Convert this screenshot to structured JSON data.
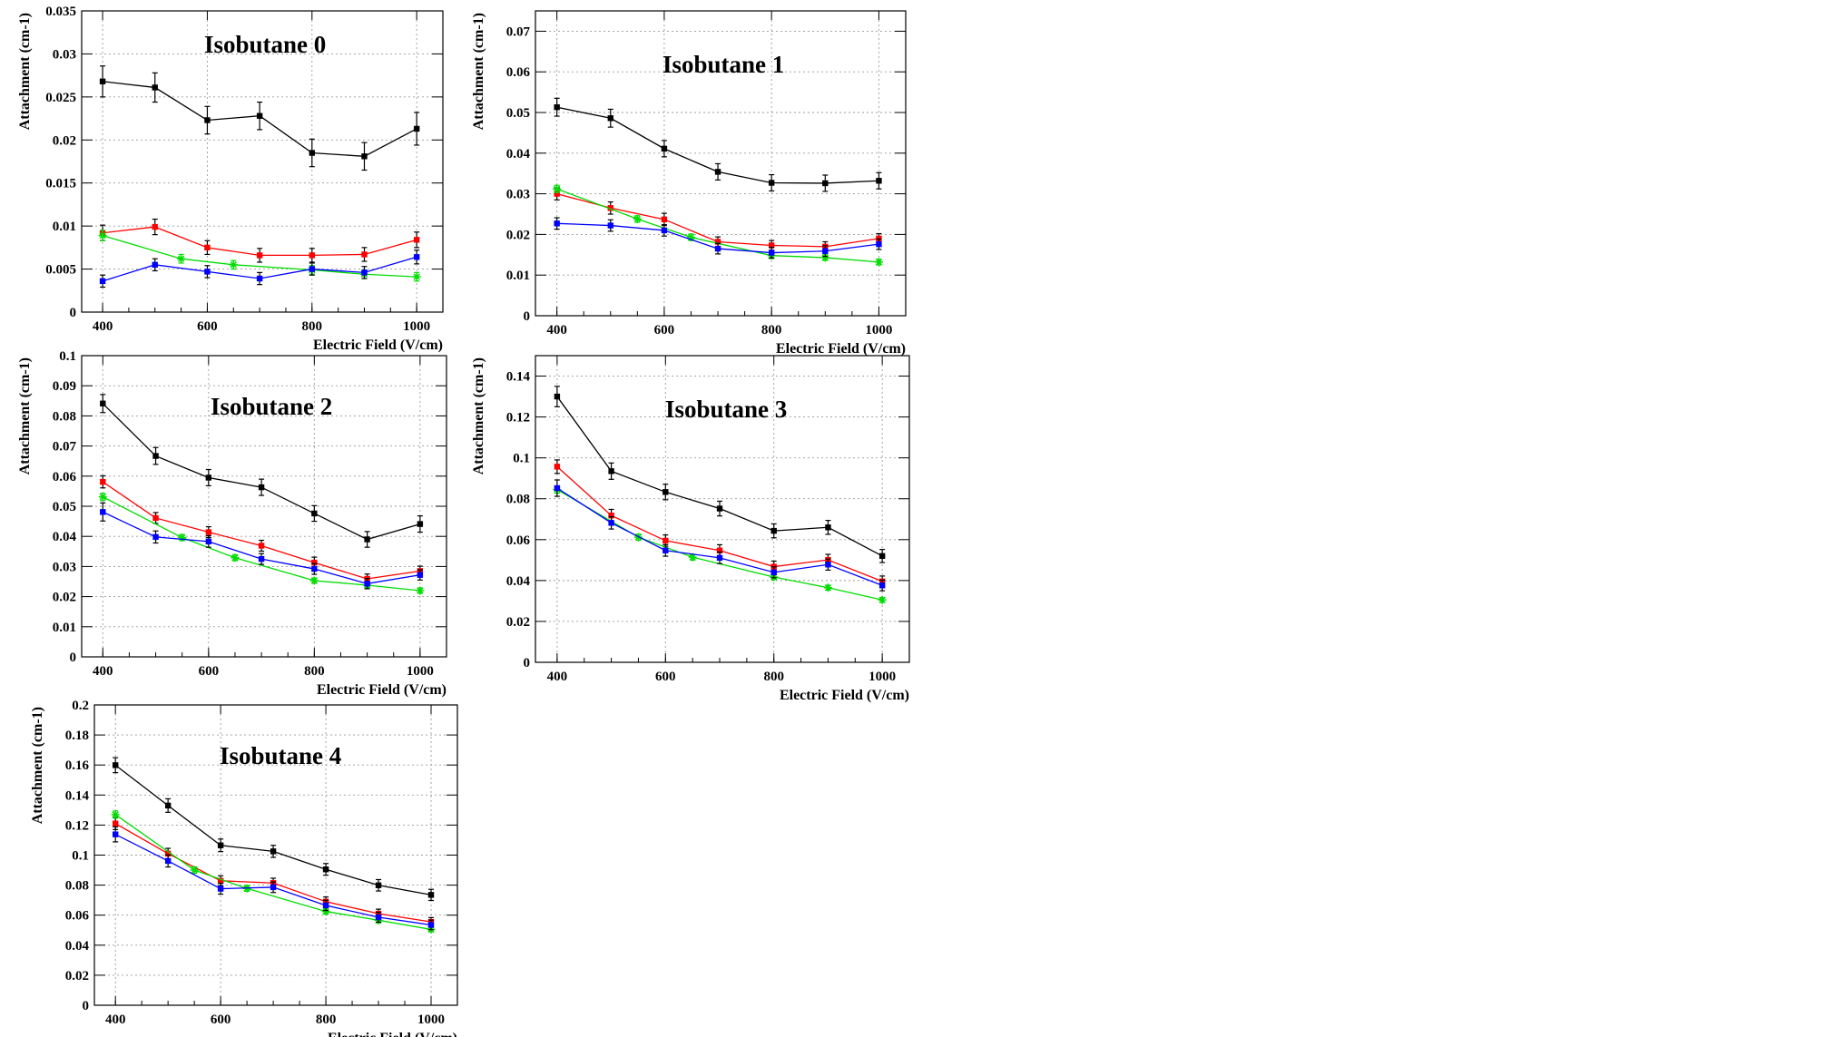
{
  "colors": {
    "black": "#000000",
    "red": "#ff0000",
    "green": "#00dd00",
    "blue": "#0000ff"
  },
  "chart_data": [
    {
      "type": "line",
      "title": "Isobutane 0",
      "xlabel": "Electric Field (V/cm)",
      "ylabel": "Attachment (cm-1)",
      "xlim": [
        360,
        1050
      ],
      "ylim": [
        0,
        0.035
      ],
      "x_ticks": [
        "400",
        "600",
        "800",
        "1000"
      ],
      "y_ticks": [
        "0",
        "0.005",
        "0.01",
        "0.015",
        "0.02",
        "0.025",
        "0.03",
        "0.035"
      ],
      "grid": true,
      "series": [
        {
          "color": "black",
          "x": [
            400,
            500,
            600,
            700,
            800,
            900,
            1000
          ],
          "y": [
            0.0268,
            0.0261,
            0.0223,
            0.0228,
            0.0185,
            0.0181,
            0.0213
          ],
          "err": [
            0.0018,
            0.0017,
            0.0016,
            0.0016,
            0.0016,
            0.0016,
            0.0019
          ]
        },
        {
          "color": "red",
          "x": [
            400,
            500,
            600,
            700,
            800,
            900,
            1000
          ],
          "y": [
            0.0092,
            0.0099,
            0.0075,
            0.0066,
            0.0066,
            0.0067,
            0.0084
          ],
          "err": [
            0.0009,
            0.0009,
            0.0008,
            0.0008,
            0.0008,
            0.0008,
            0.0009
          ]
        },
        {
          "color": "green",
          "x": [
            400,
            550,
            650,
            800,
            900,
            1000
          ],
          "y": [
            0.0089,
            0.0062,
            0.0055,
            0.0049,
            0.0044,
            0.0041
          ],
          "err": [
            0.0006,
            0.0005,
            0.0005,
            0.0005,
            0.0005,
            0.0005
          ]
        },
        {
          "color": "blue",
          "x": [
            400,
            500,
            600,
            700,
            800,
            900,
            1000
          ],
          "y": [
            0.0036,
            0.0055,
            0.0047,
            0.0039,
            0.005,
            0.0046,
            0.0064
          ],
          "err": [
            0.0007,
            0.0007,
            0.0007,
            0.0007,
            0.0007,
            0.0007,
            0.0008
          ]
        }
      ]
    },
    {
      "type": "line",
      "title": "Isobutane 1",
      "xlabel": "Electric Field (V/cm)",
      "ylabel": "Attachment (cm-1)",
      "xlim": [
        360,
        1050
      ],
      "ylim": [
        0,
        0.075
      ],
      "x_ticks": [
        "400",
        "600",
        "800",
        "1000"
      ],
      "y_ticks": [
        "0",
        "0.01",
        "0.02",
        "0.03",
        "0.04",
        "0.05",
        "0.06",
        "0.07"
      ],
      "grid": true,
      "series": [
        {
          "color": "black",
          "x": [
            400,
            500,
            600,
            700,
            800,
            900,
            1000
          ],
          "y": [
            0.0513,
            0.0486,
            0.0411,
            0.0354,
            0.0327,
            0.0326,
            0.0332
          ],
          "err": [
            0.0022,
            0.0022,
            0.002,
            0.002,
            0.002,
            0.002,
            0.002
          ]
        },
        {
          "color": "red",
          "x": [
            400,
            500,
            600,
            700,
            800,
            900,
            1000
          ],
          "y": [
            0.03,
            0.0265,
            0.0237,
            0.0182,
            0.0173,
            0.017,
            0.019
          ],
          "err": [
            0.0015,
            0.0015,
            0.0015,
            0.0012,
            0.0012,
            0.0012,
            0.0012
          ]
        },
        {
          "color": "green",
          "x": [
            400,
            550,
            650,
            800,
            900,
            1000
          ],
          "y": [
            0.0312,
            0.0238,
            0.0193,
            0.0148,
            0.0143,
            0.0132
          ],
          "err": [
            0.0009,
            0.0008,
            0.0008,
            0.0007,
            0.0007,
            0.0007
          ]
        },
        {
          "color": "blue",
          "x": [
            400,
            500,
            600,
            700,
            800,
            900,
            1000
          ],
          "y": [
            0.0227,
            0.0222,
            0.021,
            0.0165,
            0.0155,
            0.0159,
            0.0176
          ],
          "err": [
            0.0014,
            0.0014,
            0.0014,
            0.0013,
            0.0013,
            0.0013,
            0.0013
          ]
        }
      ]
    },
    {
      "type": "line",
      "title": "Isobutane 2",
      "xlabel": "Electric Field (V/cm)",
      "ylabel": "Attachment (cm-1)",
      "xlim": [
        360,
        1050
      ],
      "ylim": [
        0,
        0.1
      ],
      "x_ticks": [
        "400",
        "600",
        "800",
        "1000"
      ],
      "y_ticks": [
        "0",
        "0.01",
        "0.02",
        "0.03",
        "0.04",
        "0.05",
        "0.06",
        "0.07",
        "0.08",
        "0.09",
        "0.1"
      ],
      "grid": true,
      "series": [
        {
          "color": "black",
          "x": [
            400,
            500,
            600,
            700,
            800,
            900,
            1000
          ],
          "y": [
            0.0841,
            0.0667,
            0.0595,
            0.0563,
            0.0476,
            0.039,
            0.0441
          ],
          "err": [
            0.003,
            0.0028,
            0.0027,
            0.0027,
            0.0026,
            0.0026,
            0.0027
          ]
        },
        {
          "color": "red",
          "x": [
            400,
            500,
            600,
            700,
            800,
            900,
            1000
          ],
          "y": [
            0.0581,
            0.0461,
            0.0414,
            0.0369,
            0.0313,
            0.0259,
            0.0285
          ],
          "err": [
            0.002,
            0.0018,
            0.0018,
            0.0018,
            0.0018,
            0.0016,
            0.0016
          ]
        },
        {
          "color": "green",
          "x": [
            400,
            550,
            650,
            800,
            900,
            1000
          ],
          "y": [
            0.0531,
            0.0396,
            0.0329,
            0.0253,
            0.0238,
            0.022
          ],
          "err": [
            0.0012,
            0.001,
            0.001,
            0.0009,
            0.0009,
            0.0009
          ]
        },
        {
          "color": "blue",
          "x": [
            400,
            500,
            600,
            700,
            800,
            900,
            1000
          ],
          "y": [
            0.0481,
            0.0398,
            0.0383,
            0.0325,
            0.0292,
            0.0243,
            0.0272
          ],
          "err": [
            0.003,
            0.002,
            0.0019,
            0.0018,
            0.0018,
            0.0017,
            0.0017
          ]
        }
      ]
    },
    {
      "type": "line",
      "title": "Isobutane 3",
      "xlabel": "Electric Field (V/cm)",
      "ylabel": "Attachment (cm-1)",
      "xlim": [
        360,
        1050
      ],
      "ylim": [
        0,
        0.15
      ],
      "x_ticks": [
        "400",
        "600",
        "800",
        "1000"
      ],
      "y_ticks": [
        "0",
        "0.02",
        "0.04",
        "0.06",
        "0.08",
        "0.1",
        "0.12",
        "0.14"
      ],
      "grid": true,
      "series": [
        {
          "color": "black",
          "x": [
            400,
            500,
            600,
            700,
            800,
            900,
            1000
          ],
          "y": [
            0.13,
            0.0935,
            0.0833,
            0.0752,
            0.0643,
            0.066,
            0.052
          ],
          "err": [
            0.005,
            0.004,
            0.0038,
            0.0036,
            0.0034,
            0.0034,
            0.0032
          ]
        },
        {
          "color": "red",
          "x": [
            400,
            500,
            600,
            700,
            800,
            900,
            1000
          ],
          "y": [
            0.0957,
            0.0718,
            0.0595,
            0.0547,
            0.0468,
            0.0501,
            0.0396
          ],
          "err": [
            0.0033,
            0.003,
            0.0028,
            0.0028,
            0.0027,
            0.0027,
            0.0026
          ]
        },
        {
          "color": "green",
          "x": [
            400,
            550,
            650,
            800,
            900,
            1000
          ],
          "y": [
            0.0845,
            0.0612,
            0.0514,
            0.0417,
            0.0365,
            0.0305
          ],
          "err": [
            0.0018,
            0.0015,
            0.0014,
            0.0013,
            0.0012,
            0.0012
          ]
        },
        {
          "color": "blue",
          "x": [
            400,
            500,
            600,
            700,
            800,
            900,
            1000
          ],
          "y": [
            0.0852,
            0.0682,
            0.0547,
            0.0511,
            0.044,
            0.0478,
            0.0376
          ],
          "err": [
            0.004,
            0.003,
            0.0028,
            0.0028,
            0.0027,
            0.0027,
            0.0026
          ]
        }
      ]
    },
    {
      "type": "line",
      "title": "Isobutane 4",
      "xlabel": "Electric Field (V/cm)",
      "ylabel": "Attachment (cm-1)",
      "xlim": [
        360,
        1050
      ],
      "ylim": [
        0,
        0.2
      ],
      "x_ticks": [
        "400",
        "600",
        "800",
        "1000"
      ],
      "y_ticks": [
        "0",
        "0.02",
        "0.04",
        "0.06",
        "0.08",
        "0.1",
        "0.12",
        "0.14",
        "0.16",
        "0.18",
        "0.2"
      ],
      "grid": true,
      "series": [
        {
          "color": "black",
          "x": [
            400,
            500,
            600,
            700,
            800,
            900,
            1000
          ],
          "y": [
            0.1599,
            0.133,
            0.1065,
            0.1025,
            0.0905,
            0.0799,
            0.0735
          ],
          "err": [
            0.005,
            0.0045,
            0.0042,
            0.004,
            0.0039,
            0.0038,
            0.0037
          ]
        },
        {
          "color": "red",
          "x": [
            400,
            500,
            600,
            700,
            800,
            900,
            1000
          ],
          "y": [
            0.121,
            0.101,
            0.0829,
            0.0814,
            0.069,
            0.061,
            0.0555
          ],
          "err": [
            0.004,
            0.0035,
            0.0033,
            0.0032,
            0.0031,
            0.003,
            0.0029
          ]
        },
        {
          "color": "green",
          "x": [
            400,
            550,
            650,
            800,
            900,
            1000
          ],
          "y": [
            0.127,
            0.09,
            0.0778,
            0.0625,
            0.0566,
            0.0505
          ],
          "err": [
            0.0024,
            0.0021,
            0.0019,
            0.0018,
            0.0017,
            0.0016
          ]
        },
        {
          "color": "blue",
          "x": [
            400,
            500,
            600,
            700,
            800,
            900,
            1000
          ],
          "y": [
            0.1138,
            0.0961,
            0.0776,
            0.0786,
            0.0665,
            0.0586,
            0.0535
          ],
          "err": [
            0.005,
            0.004,
            0.0036,
            0.0035,
            0.0034,
            0.0033,
            0.0032
          ]
        }
      ]
    }
  ]
}
